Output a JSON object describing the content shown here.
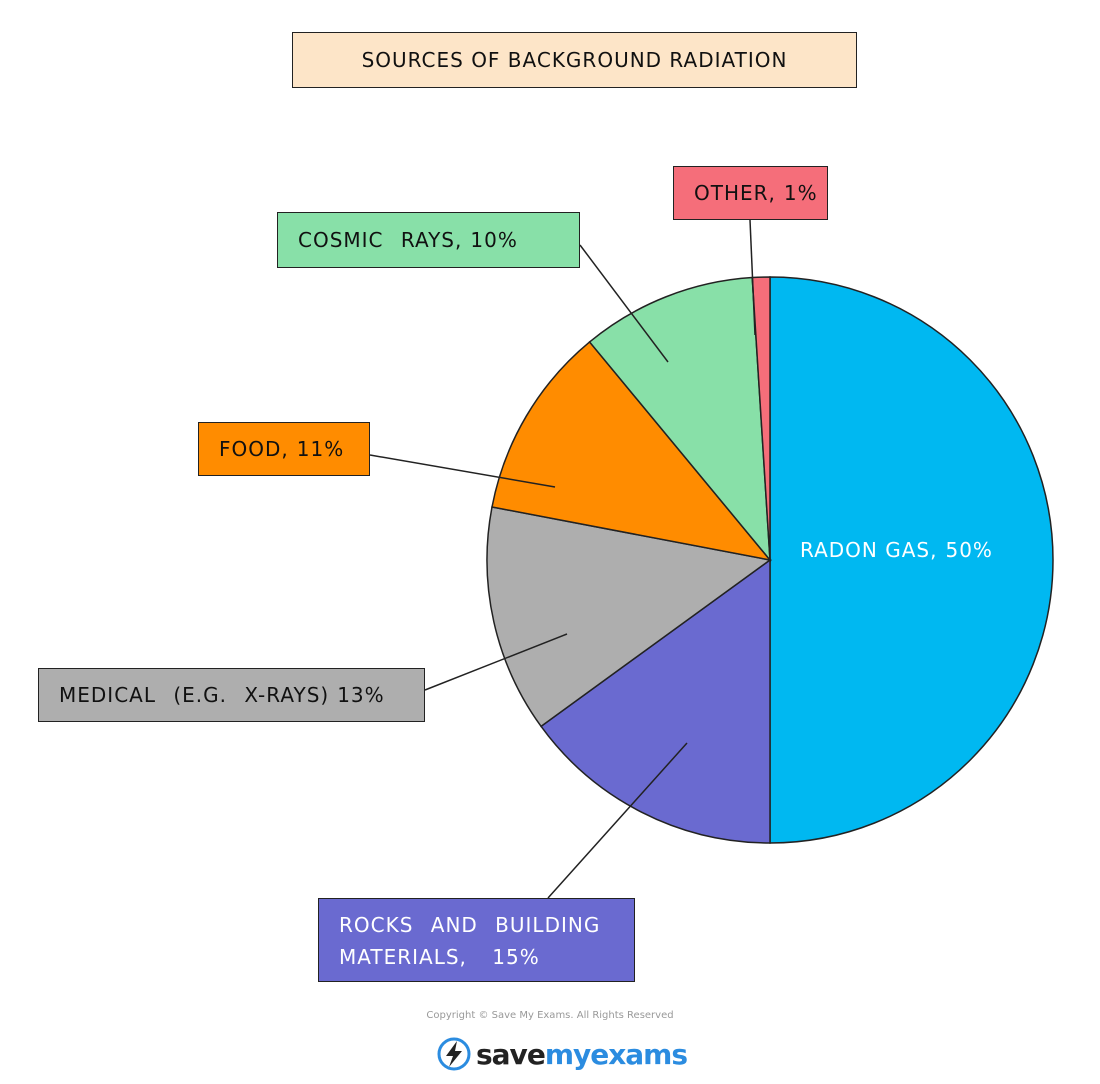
{
  "chart_data": {
    "type": "pie",
    "title": "SOURCES OF BACKGROUND RADIATION",
    "categories": [
      "RADON GAS,",
      "ROCKS AND BUILDING MATERIALS,",
      "MEDICAL (E.G. X-RAYS)",
      "FOOD,",
      "COSMIC RAYS,",
      "OTHER,"
    ],
    "values": [
      50,
      15,
      13,
      11,
      10,
      1
    ],
    "value_labels": [
      "50%",
      "15%",
      "13%",
      "11%",
      "10%",
      "1%"
    ],
    "colors": [
      "#00b8f1",
      "#6a6ad0",
      "#aeaeae",
      "#ff8c00",
      "#88e0a8",
      "#f56e7a"
    ]
  },
  "footer": {
    "copyright": "Copyright © Save My Exams. All Rights Reserved",
    "logo": [
      "save",
      "myexams"
    ]
  }
}
